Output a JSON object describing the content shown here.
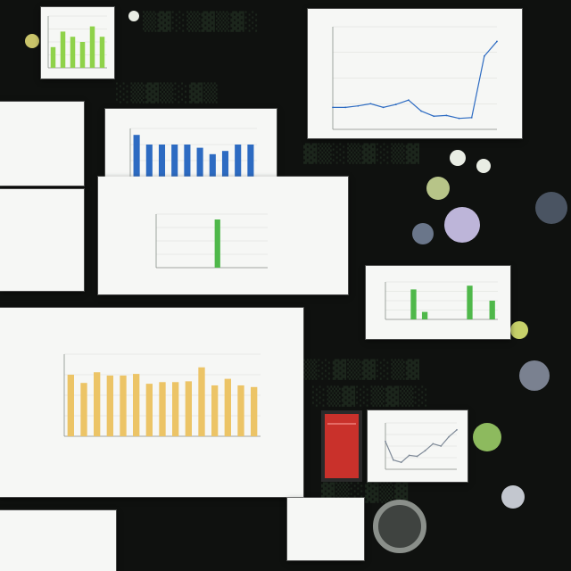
{
  "scene": {
    "description_kind": "photo-collage",
    "colors": {
      "background": "#0f110f",
      "panel": "#f6f7f5",
      "accent_green": "#4fb84a",
      "accent_blue": "#2d6bc2",
      "accent_gold": "#ecc466",
      "alert_red": "#c9312b"
    }
  },
  "chart_data": [
    {
      "type": "line",
      "title": "",
      "x": [
        1,
        2,
        3,
        4,
        5,
        6,
        7,
        8,
        9,
        10,
        11,
        12,
        13,
        14
      ],
      "y": [
        3,
        3,
        3.2,
        3.5,
        3,
        3.4,
        4,
        2.5,
        1.8,
        1.9,
        1.5,
        1.6,
        10,
        12
      ],
      "ylim": [
        0,
        14
      ],
      "grid": true
    },
    {
      "type": "bar",
      "title": "",
      "categories": [
        "",
        "",
        "",
        "",
        "",
        "",
        "",
        "",
        "",
        ""
      ],
      "values": [
        9,
        7.5,
        7.5,
        7.5,
        7.5,
        7,
        6,
        6.5,
        7.5,
        7.5
      ],
      "ylim": [
        0,
        10
      ],
      "grid": true
    },
    {
      "type": "bar",
      "title": "",
      "categories": [
        "",
        "",
        "",
        "",
        "",
        "",
        "",
        "",
        "",
        ""
      ],
      "values": [
        0,
        0,
        0,
        0,
        0,
        9,
        0,
        0,
        0,
        0
      ],
      "ylim": [
        0,
        10
      ],
      "grid": true
    },
    {
      "type": "bar",
      "title": "",
      "categories": [
        "",
        "",
        "",
        "",
        "",
        "",
        "",
        "",
        "",
        ""
      ],
      "values": [
        0,
        0,
        8,
        2,
        0,
        0,
        0,
        9,
        0,
        5
      ],
      "ylim": [
        0,
        10
      ],
      "grid": true
    },
    {
      "type": "bar",
      "title": "",
      "categories": [
        "",
        "",
        "",
        "",
        "",
        "",
        "",
        "",
        "",
        "",
        "",
        "",
        "",
        "",
        ""
      ],
      "values": [
        7.5,
        6.5,
        7.8,
        7.4,
        7.4,
        7.6,
        6.4,
        6.6,
        6.6,
        6.7,
        8.4,
        6.2,
        7,
        6.2,
        6
      ],
      "ylim": [
        0,
        10
      ],
      "grid": true
    },
    {
      "type": "line",
      "title": "",
      "x": [
        1,
        2,
        3,
        4,
        5,
        6,
        7,
        8,
        9,
        10
      ],
      "y": [
        6,
        2,
        1.5,
        3,
        2.8,
        4,
        5.5,
        5,
        7,
        8.5
      ],
      "ylim": [
        0,
        10
      ],
      "grid": true
    },
    {
      "type": "bar",
      "title": "",
      "categories": [
        "",
        "",
        "",
        "",
        "",
        ""
      ],
      "values": [
        4,
        7,
        6,
        5,
        8,
        6
      ],
      "ylim": [
        0,
        10
      ],
      "grid": true
    }
  ]
}
